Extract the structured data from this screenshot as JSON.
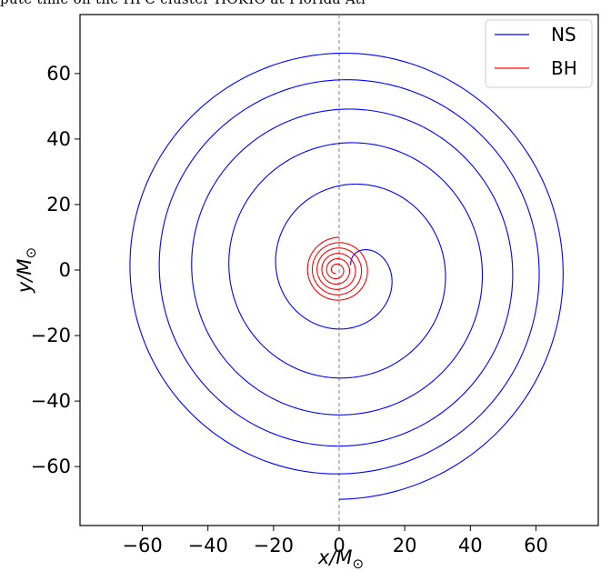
{
  "header_fragment": "pute time on the HPC cluster HOKIO at Florida Atl",
  "chart_data": {
    "type": "line",
    "xlabel": "x/M",
    "ylabel": "y/M",
    "label_subscript": "⊙",
    "xlim": [
      -79,
      79
    ],
    "ylim": [
      -78,
      78
    ],
    "x_ticks": [
      -60,
      -40,
      -20,
      0,
      20,
      40,
      60
    ],
    "y_ticks": [
      -60,
      -40,
      -20,
      0,
      20,
      40,
      60
    ],
    "x_tick_labels": [
      "−60",
      "−40",
      "−20",
      "0",
      "20",
      "40",
      "60"
    ],
    "y_tick_labels": [
      "−60",
      "−40",
      "−20",
      "0",
      "20",
      "40",
      "60"
    ],
    "grid": false,
    "vertical_reference_line": {
      "x": 0,
      "style": "dashed",
      "color": "#808080"
    },
    "legend_position": "top-right",
    "series": [
      {
        "name": "NS",
        "color": "#0000ff",
        "spiral": {
          "r_start": 70,
          "theta_start_deg": 270,
          "r_end": 1.5,
          "turns": 5.5,
          "radius_exponent": 0.6,
          "x_offset": 3.5
        }
      },
      {
        "name": "BH",
        "color": "#ff0000",
        "spiral": {
          "r_start": 10,
          "theta_start_deg": 90,
          "r_end": 1,
          "turns": 5.5,
          "radius_exponent": 1.0,
          "x_offset": -1
        }
      }
    ]
  }
}
